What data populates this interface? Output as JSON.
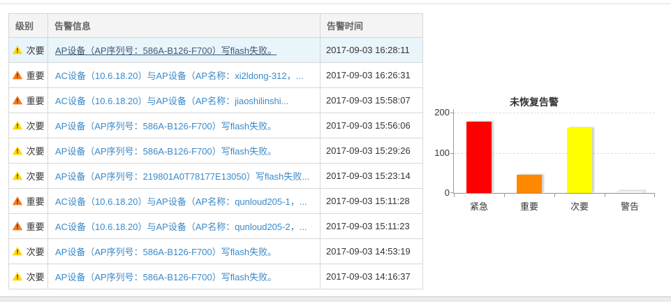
{
  "table": {
    "headers": [
      "级别",
      "告警信息",
      "告警时间"
    ],
    "rows": [
      {
        "severity": "minor",
        "level": "次要",
        "message": "AP设备（AP序列号：586A-B126-F700）写flash失败。",
        "time": "2017-09-03 16:28:11",
        "selected": true
      },
      {
        "severity": "major",
        "level": "重要",
        "message": "AC设备（10.6.18.20）与AP设备（AP名称：xi2ldong-312，...",
        "time": "2017-09-03 16:26:31",
        "selected": false
      },
      {
        "severity": "major",
        "level": "重要",
        "message": "AC设备（10.6.18.20）与AP设备（AP名称：jiaoshilinshi...",
        "time": "2017-09-03 15:58:07",
        "selected": false
      },
      {
        "severity": "minor",
        "level": "次要",
        "message": "AP设备（AP序列号：586A-B126-F700）写flash失败。",
        "time": "2017-09-03 15:56:06",
        "selected": false
      },
      {
        "severity": "minor",
        "level": "次要",
        "message": "AP设备（AP序列号：586A-B126-F700）写flash失败。",
        "time": "2017-09-03 15:29:26",
        "selected": false
      },
      {
        "severity": "minor",
        "level": "次要",
        "message": "AP设备（AP序列号：219801A0T78177E13050）写flash失败...",
        "time": "2017-09-03 15:23:14",
        "selected": false
      },
      {
        "severity": "major",
        "level": "重要",
        "message": "AC设备（10.6.18.20）与AP设备（AP名称：qunloud205-1，...",
        "time": "2017-09-03 15:11:28",
        "selected": false
      },
      {
        "severity": "major",
        "level": "重要",
        "message": "AC设备（10.6.18.20）与AP设备（AP名称：qunloud205-2，...",
        "time": "2017-09-03 15:11:23",
        "selected": false
      },
      {
        "severity": "minor",
        "level": "次要",
        "message": "AP设备（AP序列号：586A-B126-F700）写flash失败。",
        "time": "2017-09-03 14:53:19",
        "selected": false
      },
      {
        "severity": "minor",
        "level": "次要",
        "message": "AP设备（AP序列号：586A-B126-F700）写flash失败。",
        "time": "2017-09-03 14:16:37",
        "selected": false
      }
    ]
  },
  "severity_colors": {
    "minor": "#ffd800",
    "major": "#f57c1f",
    "exclamation": "#1a1a1a"
  },
  "chart_data": {
    "type": "bar",
    "title": "未恢复告警",
    "categories": [
      "紧急",
      "重要",
      "次要",
      "警告"
    ],
    "values": [
      178,
      45,
      161,
      2
    ],
    "colors": [
      "#ff0000",
      "#ff8800",
      "#ffff00",
      "#fcfcfc"
    ],
    "xlabel": "",
    "ylabel": "",
    "ylim": [
      0,
      200
    ],
    "yticks": [
      0,
      100,
      200
    ],
    "grid": "dashed-horizontal",
    "legend_position": "none"
  }
}
